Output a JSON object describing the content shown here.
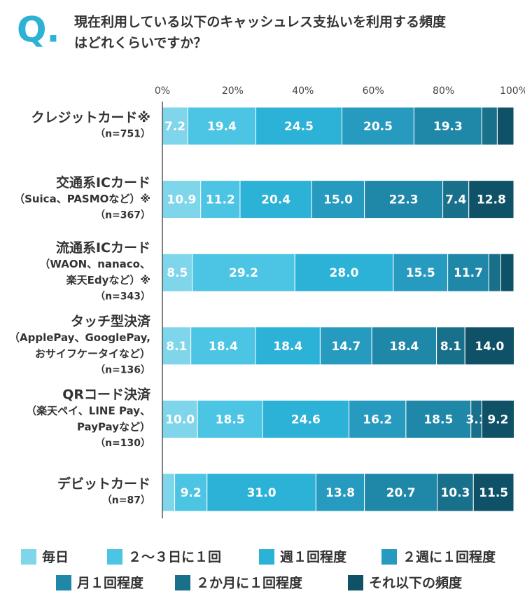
{
  "chart_data": {
    "type": "stacked_barh",
    "question_mark": "Q.",
    "title": [
      "現在利用している以下のキャッシュレス支払いを利用する頻度",
      "はどれくらいですか？"
    ],
    "categories": [
      [
        "クレジットカード※"
      ],
      [
        "交通系ICカード",
        "（Suica、PASMOなど）※"
      ],
      [
        "流通系ICカード",
        "（WAON、nanaco、",
        "楽天Edyなど）※"
      ],
      [
        "タッチ型決済",
        "（ApplePay、GooglePay,",
        "おサイフケータイなど）"
      ],
      [
        "QRコード決済",
        "（楽天ペイ、LINE Pay、",
        "PayPayなど）"
      ],
      [
        "デビットカード"
      ]
    ],
    "sample_sizes": [
      "（n=751）",
      "（n=367）",
      "（n=343）",
      "（n=136）",
      "（n=130）",
      "（n=87）"
    ],
    "xlim": [
      0,
      100
    ],
    "xticks": [
      {
        "value": 0,
        "label": "0%"
      },
      {
        "value": 20,
        "label": "20%"
      },
      {
        "value": 40,
        "label": "40%"
      },
      {
        "value": 60,
        "label": "60%"
      },
      {
        "value": 80,
        "label": "80%"
      },
      {
        "value": 100,
        "label": "100%"
      }
    ],
    "series": [
      {
        "name": "毎日",
        "color": "#7fd5ea",
        "values": [
          7.2,
          10.9,
          8.5,
          8.1,
          10.0,
          3.5
        ],
        "value_labels": [
          "7.2",
          "10.9",
          "8.5",
          "8.1",
          "10.0",
          null
        ]
      },
      {
        "name": "２〜３日に１回",
        "color": "#4cc4e3",
        "values": [
          19.4,
          11.2,
          29.2,
          18.4,
          18.5,
          9.2
        ],
        "value_labels": [
          "19.4",
          "11.2",
          "29.2",
          "18.4",
          "18.5",
          "9.2"
        ]
      },
      {
        "name": "週１回程度",
        "color": "#2cb2d6",
        "values": [
          24.5,
          20.4,
          28.0,
          18.4,
          24.6,
          31.0
        ],
        "value_labels": [
          "24.5",
          "20.4",
          "28.0",
          "18.4",
          "24.6",
          "31.0"
        ]
      },
      {
        "name": "２週に１回程度",
        "color": "#269bbf",
        "values": [
          20.5,
          15.0,
          15.5,
          14.7,
          16.2,
          13.8
        ],
        "value_labels": [
          "20.5",
          "15.0",
          "15.5",
          "14.7",
          "16.2",
          "13.8"
        ]
      },
      {
        "name": "月１回程度",
        "color": "#1f87a7",
        "values": [
          19.3,
          22.3,
          11.7,
          18.4,
          18.5,
          20.7
        ],
        "value_labels": [
          "19.3",
          "22.3",
          "11.7",
          "18.4",
          "18.5",
          "20.7"
        ]
      },
      {
        "name": "２か月に１回程度",
        "color": "#19708b",
        "values": [
          4.4,
          7.4,
          3.4,
          8.1,
          3.1,
          10.3
        ],
        "value_labels": [
          null,
          "7.4",
          null,
          "8.1",
          "3.1",
          "10.3"
        ]
      },
      {
        "name": "それ以下の頻度",
        "color": "#0f5268",
        "values": [
          4.7,
          12.8,
          3.7,
          14.0,
          9.2,
          11.5
        ],
        "value_labels": [
          null,
          "12.8",
          null,
          "14.0",
          "9.2",
          "11.5"
        ]
      }
    ]
  }
}
